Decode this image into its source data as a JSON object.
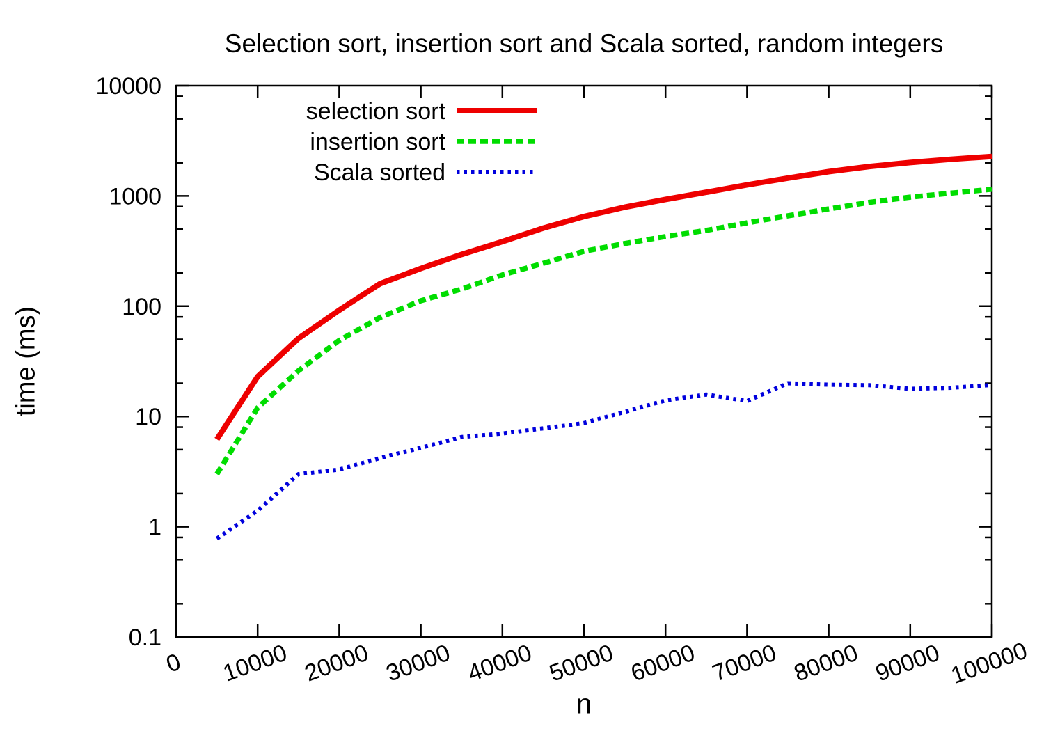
{
  "chart_data": {
    "type": "line",
    "title": "Selection sort, insertion sort and Scala sorted, random integers",
    "xlabel": "n",
    "ylabel": "time (ms)",
    "grid": false,
    "legend_position": "inside-top-left",
    "x_scale": "linear",
    "y_scale": "log",
    "xlim": [
      0,
      100000
    ],
    "ylim": [
      0.1,
      10000
    ],
    "x_ticks": [
      0,
      10000,
      20000,
      30000,
      40000,
      50000,
      60000,
      70000,
      80000,
      90000,
      100000
    ],
    "y_ticks": [
      0.1,
      1,
      10,
      100,
      1000,
      10000
    ],
    "y_tick_labels": [
      "0.1",
      "1",
      "10",
      "100",
      "1000",
      "10000"
    ],
    "x": [
      5000,
      10000,
      15000,
      20000,
      25000,
      30000,
      35000,
      40000,
      45000,
      50000,
      55000,
      60000,
      65000,
      70000,
      75000,
      80000,
      85000,
      90000,
      95000,
      100000
    ],
    "series": [
      {
        "name": "selection sort",
        "color": "#ee0000",
        "style": "solid",
        "values": [
          6.2,
          23,
          51,
          92,
          160,
          220,
          295,
          385,
          510,
          650,
          790,
          930,
          1080,
          1260,
          1450,
          1660,
          1850,
          2010,
          2150,
          2280
        ]
      },
      {
        "name": "insertion sort",
        "color": "#00dd00",
        "style": "dashed",
        "values": [
          3.0,
          12,
          26,
          49,
          79,
          112,
          143,
          192,
          245,
          315,
          370,
          428,
          487,
          570,
          660,
          762,
          875,
          975,
          1060,
          1150
        ]
      },
      {
        "name": "Scala sorted",
        "color": "#0000dd",
        "style": "dotted",
        "values": [
          0.78,
          1.4,
          3.0,
          3.3,
          4.2,
          5.2,
          6.5,
          7.0,
          7.8,
          8.7,
          11,
          14,
          15.8,
          13.8,
          20,
          19.4,
          19.2,
          17.8,
          18.2,
          19.3
        ]
      }
    ]
  }
}
